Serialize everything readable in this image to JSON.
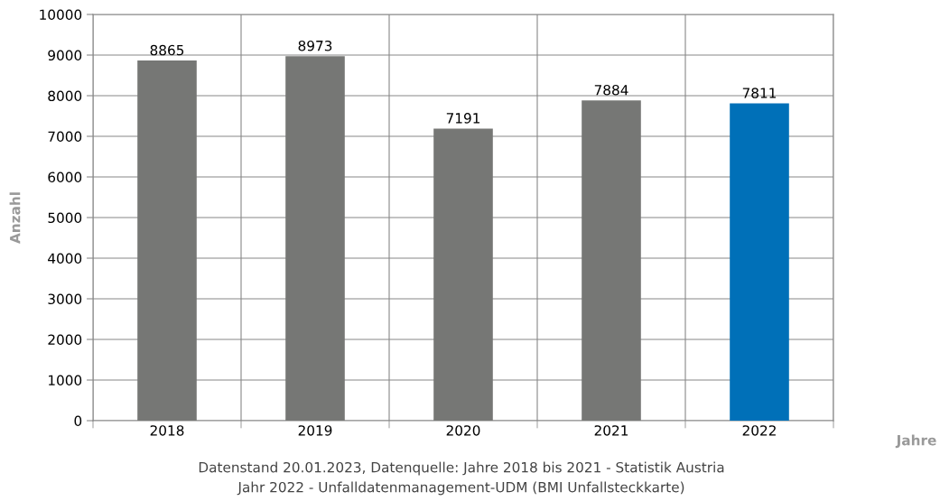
{
  "chart_data": {
    "type": "bar",
    "xlabel": "Jahre",
    "ylabel": "Anzahl",
    "categories": [
      "2018",
      "2019",
      "2020",
      "2021",
      "2022"
    ],
    "values": [
      8865,
      8973,
      7191,
      7884,
      7811
    ],
    "colors": [
      "#767775",
      "#767775",
      "#767775",
      "#767775",
      "#0070b8"
    ],
    "ylim": [
      0,
      10000
    ],
    "yticks": [
      0,
      1000,
      2000,
      3000,
      4000,
      5000,
      6000,
      7000,
      8000,
      9000,
      10000
    ],
    "grid": true,
    "data_labels": true,
    "annotations": [
      "Datenstand 20.01.2023, Datenquelle: Jahre 2018 bis 2021 - Statistik Austria",
      "Jahr 2022 - Unfalldatenmanagement-UDM (BMI Unfallsteckkarte)"
    ]
  }
}
